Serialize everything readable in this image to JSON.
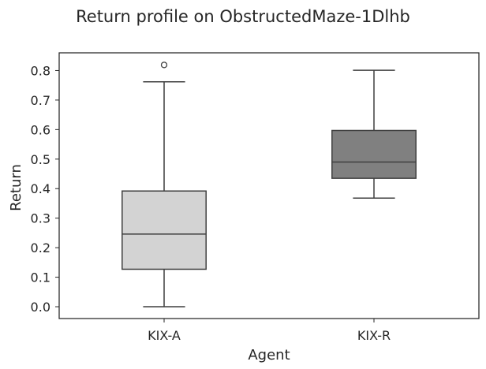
{
  "chart_data": {
    "type": "box",
    "title": "Return profile on ObstructedMaze-1Dlhb",
    "xlabel": "Agent",
    "ylabel": "Return",
    "ylim": [
      -0.04,
      0.86
    ],
    "yticks": [
      "0.0",
      "0.1",
      "0.2",
      "0.3",
      "0.4",
      "0.5",
      "0.6",
      "0.7",
      "0.8"
    ],
    "ytick_values": [
      0.0,
      0.1,
      0.2,
      0.3,
      0.4,
      0.5,
      0.6,
      0.7,
      0.8
    ],
    "grid": false,
    "categories": [
      "KIX-A",
      "KIX-R"
    ],
    "boxes": [
      {
        "category": "KIX-A",
        "whisker_low": 0.0,
        "q1": 0.127,
        "median": 0.246,
        "q3": 0.392,
        "whisker_high": 0.762,
        "outliers": [
          0.819
        ],
        "color": "#d3d3d3"
      },
      {
        "category": "KIX-R",
        "whisker_low": 0.368,
        "q1": 0.435,
        "median": 0.49,
        "q3": 0.597,
        "whisker_high": 0.801,
        "outliers": [],
        "color": "#808080"
      }
    ],
    "line_color": "#3f3f3f"
  }
}
